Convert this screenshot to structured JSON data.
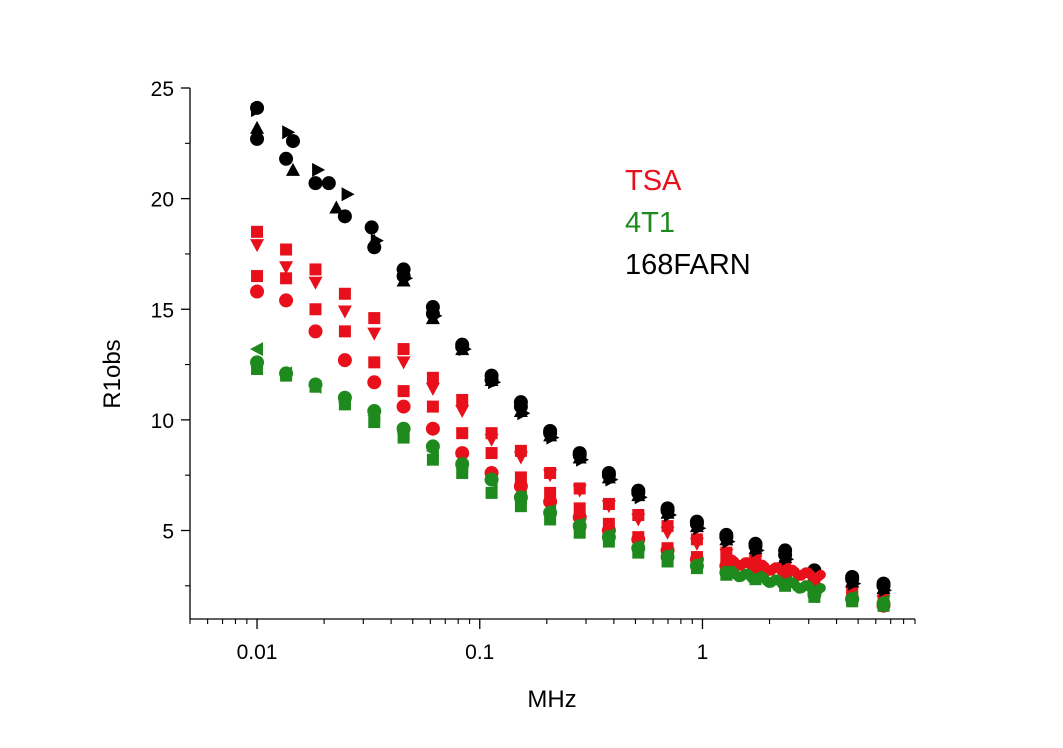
{
  "chart_data": {
    "type": "scatter",
    "title": "",
    "xlabel": "MHz",
    "ylabel": "R1obs",
    "xscale": "log",
    "xlim": [
      0.005,
      9
    ],
    "ylim": [
      1,
      25
    ],
    "x_ticks": [
      {
        "value": 0.01,
        "label": "0.01"
      },
      {
        "value": 0.1,
        "label": "0.1"
      },
      {
        "value": 1,
        "label": "1"
      }
    ],
    "y_ticks": [
      {
        "value": 5,
        "label": "5"
      },
      {
        "value": 10,
        "label": "10"
      },
      {
        "value": 15,
        "label": "15"
      },
      {
        "value": 20,
        "label": "20"
      },
      {
        "value": 25,
        "label": "25"
      }
    ],
    "grid": false,
    "legend": [
      {
        "label": "TSA",
        "color": "#e8101a"
      },
      {
        "label": "4T1",
        "color": "#1e8a1e"
      },
      {
        "label": "168FARN",
        "color": "#000000"
      }
    ],
    "series": [
      {
        "group": "TSA",
        "color": "#e8101a",
        "marker": "square",
        "x": [
          0.01,
          0.0135,
          0.0183,
          0.0248,
          0.0336,
          0.0455,
          0.0616,
          0.0834,
          0.113,
          0.153,
          0.207,
          0.281,
          0.38,
          0.515,
          0.697,
          0.944,
          1.28,
          1.73,
          2.35,
          3.18,
          4.7,
          6.5
        ],
        "y": [
          18.5,
          17.7,
          16.8,
          15.7,
          14.6,
          13.2,
          11.9,
          10.9,
          9.4,
          8.6,
          7.6,
          6.9,
          6.2,
          5.7,
          5.2,
          4.6,
          4.0,
          3.7,
          3.4,
          2.8,
          2.3,
          1.9
        ]
      },
      {
        "group": "TSA",
        "color": "#e8101a",
        "marker": "triangle-down",
        "x": [
          0.01,
          0.0135,
          0.0183,
          0.0248,
          0.0336,
          0.0455,
          0.0616,
          0.0834,
          0.113,
          0.153,
          0.207,
          0.281,
          0.38,
          0.515,
          0.697,
          0.944,
          1.28,
          1.73,
          2.35,
          3.18,
          4.7,
          6.5
        ],
        "y": [
          17.9,
          16.9,
          16.2,
          14.9,
          13.9,
          12.6,
          11.4,
          10.4,
          9.1,
          8.3,
          7.5,
          6.8,
          6.1,
          5.5,
          4.9,
          4.4,
          3.9,
          3.6,
          3.3,
          2.7,
          2.2,
          1.8
        ]
      },
      {
        "group": "TSA",
        "color": "#e8101a",
        "marker": "square",
        "x": [
          0.01,
          0.0135,
          0.0183,
          0.0248,
          0.0336,
          0.0455,
          0.0616,
          0.0834,
          0.113,
          0.153,
          0.207,
          0.281,
          0.38,
          0.515,
          0.697,
          0.944,
          1.28,
          1.73,
          2.35,
          3.18,
          4.7,
          6.5
        ],
        "y": [
          16.5,
          16.4,
          15.0,
          14.0,
          12.6,
          11.3,
          10.6,
          9.4,
          8.5,
          7.4,
          6.7,
          6.0,
          5.3,
          4.7,
          4.2,
          3.8,
          3.5,
          3.2,
          3.0,
          2.4,
          1.9,
          1.6
        ]
      },
      {
        "group": "TSA",
        "color": "#e8101a",
        "marker": "circle",
        "x": [
          0.01,
          0.0135,
          0.0183,
          0.0248,
          0.0336,
          0.0455,
          0.0616,
          0.0834,
          0.113,
          0.153,
          0.207,
          0.281,
          0.38,
          0.515,
          0.697,
          0.944,
          1.28,
          1.73,
          2.35,
          3.18,
          4.7,
          6.5
        ],
        "y": [
          15.8,
          15.4,
          14.0,
          12.7,
          11.7,
          10.6,
          9.6,
          8.5,
          7.6,
          7.0,
          6.3,
          5.6,
          5.0,
          4.6,
          4.1,
          3.7,
          3.4,
          3.1,
          2.9,
          2.3,
          1.9,
          1.6
        ]
      },
      {
        "group": "4T1",
        "color": "#1e8a1e",
        "marker": "triangle-left",
        "x": [
          0.01,
          0.0135,
          0.0183,
          0.0248,
          0.0336,
          0.0455,
          0.0616,
          0.0834,
          0.113,
          0.153,
          0.207,
          0.281,
          0.38,
          0.515,
          0.697,
          0.944,
          1.28,
          1.73,
          2.35,
          3.18,
          4.7,
          6.5
        ],
        "y": [
          13.2,
          12.1,
          11.5,
          10.8,
          10.2,
          9.4,
          8.6,
          7.9,
          7.2,
          6.5,
          5.9,
          5.3,
          4.8,
          4.3,
          3.9,
          3.5,
          3.1,
          2.9,
          2.7,
          2.2,
          2.0,
          1.8
        ]
      },
      {
        "group": "4T1",
        "color": "#1e8a1e",
        "marker": "circle",
        "x": [
          0.01,
          0.0135,
          0.0183,
          0.0248,
          0.0336,
          0.0455,
          0.0616,
          0.0834,
          0.113,
          0.153,
          0.207,
          0.281,
          0.38,
          0.515,
          0.697,
          0.944,
          1.28,
          1.73,
          2.35,
          3.18,
          4.7,
          6.5
        ],
        "y": [
          12.6,
          12.1,
          11.6,
          11.0,
          10.4,
          9.6,
          8.8,
          8.0,
          7.3,
          6.5,
          5.8,
          5.2,
          4.7,
          4.2,
          3.8,
          3.4,
          3.1,
          2.9,
          2.6,
          2.1,
          1.9,
          1.7
        ]
      },
      {
        "group": "4T1",
        "color": "#1e8a1e",
        "marker": "square",
        "x": [
          0.01,
          0.0135,
          0.0183,
          0.0248,
          0.0336,
          0.0455,
          0.0616,
          0.0834,
          0.113,
          0.153,
          0.207,
          0.281,
          0.38,
          0.515,
          0.697,
          0.944,
          1.28,
          1.73,
          2.35,
          3.18,
          4.7,
          6.5
        ],
        "y": [
          12.3,
          12.0,
          11.5,
          10.7,
          9.9,
          9.2,
          8.2,
          7.6,
          6.7,
          6.1,
          5.5,
          4.9,
          4.5,
          4.0,
          3.6,
          3.3,
          3.0,
          2.8,
          2.5,
          2.0,
          1.8,
          1.6
        ]
      },
      {
        "group": "168FARN",
        "color": "#000000",
        "marker": "circle",
        "x": [
          0.01,
          0.0135,
          0.0183,
          0.0248,
          0.0336,
          0.0455,
          0.0616,
          0.0834,
          0.113,
          0.153,
          0.207,
          0.281,
          0.38,
          0.515,
          0.697,
          0.944,
          1.28,
          1.73,
          2.35,
          3.18,
          4.7,
          6.5
        ],
        "y": [
          24.1,
          21.8,
          20.7,
          19.2,
          17.8,
          16.8,
          15.1,
          13.4,
          12.0,
          10.8,
          9.5,
          8.5,
          7.6,
          6.8,
          6.0,
          5.4,
          4.8,
          4.4,
          4.1,
          3.2,
          2.9,
          2.6
        ]
      },
      {
        "group": "168FARN",
        "color": "#000000",
        "marker": "circle",
        "x": [
          0.01,
          0.0145,
          0.021,
          0.0327,
          0.0455,
          0.0616,
          0.0834,
          0.113,
          0.153,
          0.207,
          0.281,
          0.38,
          0.515,
          0.697,
          0.944,
          1.28,
          1.73,
          2.35,
          3.18,
          4.7,
          6.5
        ],
        "y": [
          22.7,
          22.6,
          20.7,
          18.7,
          16.5,
          14.8,
          13.3,
          11.8,
          10.6,
          9.4,
          8.4,
          7.5,
          6.7,
          5.9,
          5.3,
          4.7,
          4.3,
          3.9,
          3.1,
          2.8,
          2.5
        ]
      },
      {
        "group": "168FARN",
        "color": "#000000",
        "marker": "triangle-up",
        "x": [
          0.01,
          0.0145,
          0.0227,
          0.0336,
          0.0455,
          0.0616,
          0.0834,
          0.113,
          0.153,
          0.207,
          0.281,
          0.38,
          0.515,
          0.697,
          0.944,
          1.28,
          1.73,
          2.35,
          3.18,
          4.7,
          6.5
        ],
        "y": [
          23.2,
          21.3,
          19.6,
          18.1,
          16.3,
          14.6,
          13.2,
          11.8,
          10.4,
          9.3,
          8.3,
          7.4,
          6.6,
          5.8,
          5.2,
          4.6,
          4.2,
          3.8,
          3.0,
          2.7,
          2.4
        ]
      },
      {
        "group": "168FARN",
        "color": "#000000",
        "marker": "triangle-right",
        "x": [
          0.01,
          0.0138,
          0.0188,
          0.0255,
          0.0345,
          0.0467,
          0.0632,
          0.0856,
          0.116,
          0.157,
          0.212,
          0.288,
          0.39,
          0.528,
          0.715,
          0.968,
          1.31,
          1.77,
          2.4,
          3.25,
          4.8,
          6.6
        ],
        "y": [
          24.0,
          23.0,
          21.3,
          20.2,
          18.1,
          16.4,
          14.7,
          13.2,
          11.7,
          10.3,
          9.2,
          8.2,
          7.3,
          6.5,
          5.7,
          5.1,
          4.5,
          4.1,
          3.7,
          2.9,
          2.6,
          2.3
        ]
      }
    ],
    "dense_segment": {
      "x_range": [
        1.3,
        3.4
      ],
      "points": 44,
      "groups": [
        {
          "group": "TSA",
          "color": "#e8101a",
          "y_start": 3.6,
          "y_end": 2.9
        },
        {
          "group": "4T1",
          "color": "#1e8a1e",
          "y_start": 3.1,
          "y_end": 2.3
        }
      ]
    }
  }
}
